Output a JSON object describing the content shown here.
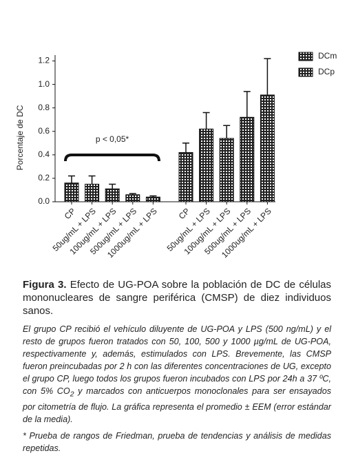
{
  "chart_data": {
    "type": "bar",
    "ylabel": "Porcentaje de DC",
    "categories": [
      "CP",
      "50ug/mL + LPS",
      "100ug/mL + LPS",
      "500ug/mL + LPS",
      "1000ug/mL + LPS"
    ],
    "series": [
      {
        "name": "DCm",
        "color": "#222222",
        "values": [
          0.16,
          0.15,
          0.11,
          0.06,
          0.04
        ],
        "errors": [
          0.06,
          0.07,
          0.04,
          0.01,
          0.01
        ]
      },
      {
        "name": "DCp",
        "color": "#222222",
        "values": [
          0.42,
          0.62,
          0.54,
          0.72,
          0.91
        ],
        "errors": [
          0.08,
          0.14,
          0.11,
          0.22,
          0.31
        ]
      }
    ],
    "ylim": [
      0,
      1.25
    ],
    "yticks": [
      {
        "value": 0,
        "label": "0.0"
      },
      0.2,
      0.4,
      0.6,
      0.8,
      {
        "value": 1,
        "label": "1.0"
      },
      1.2
    ],
    "annotation": "p < 0,05*",
    "legend": "upper right"
  },
  "caption": {
    "label": "Figura 3.",
    "title": "Efecto de UG-POA sobre la población de DC de células mononucleares de sangre periférica (CMSP) de diez individuos sanos.",
    "note": [
      "El grupo CP recibió el vehículo diluyente de UG-POA y LPS (500 ng/mL) y el resto de grupos fueron tratados con 50, 100, 500 y 1000 µg/mL de UG-POA, respectivamente y, además, estimulados con LPS. Brevemente, las CMSP fueron preincubadas por 2 h con las diferentes concentraciones de UG, excepto el grupo CP, luego todos los grupos fueron incubados con LPS por 24h a 37 ºC, con 5% CO",
      "2",
      " y marcados con anticuerpos monoclonales para ser ensayados por citometría de flujo. La gráfica representa el promedio ± EEM (error estándar de la media)."
    ],
    "footnote": "* Prueba de rangos de Friedman, prueba de tendencias y análisis de medidas repetidas."
  }
}
